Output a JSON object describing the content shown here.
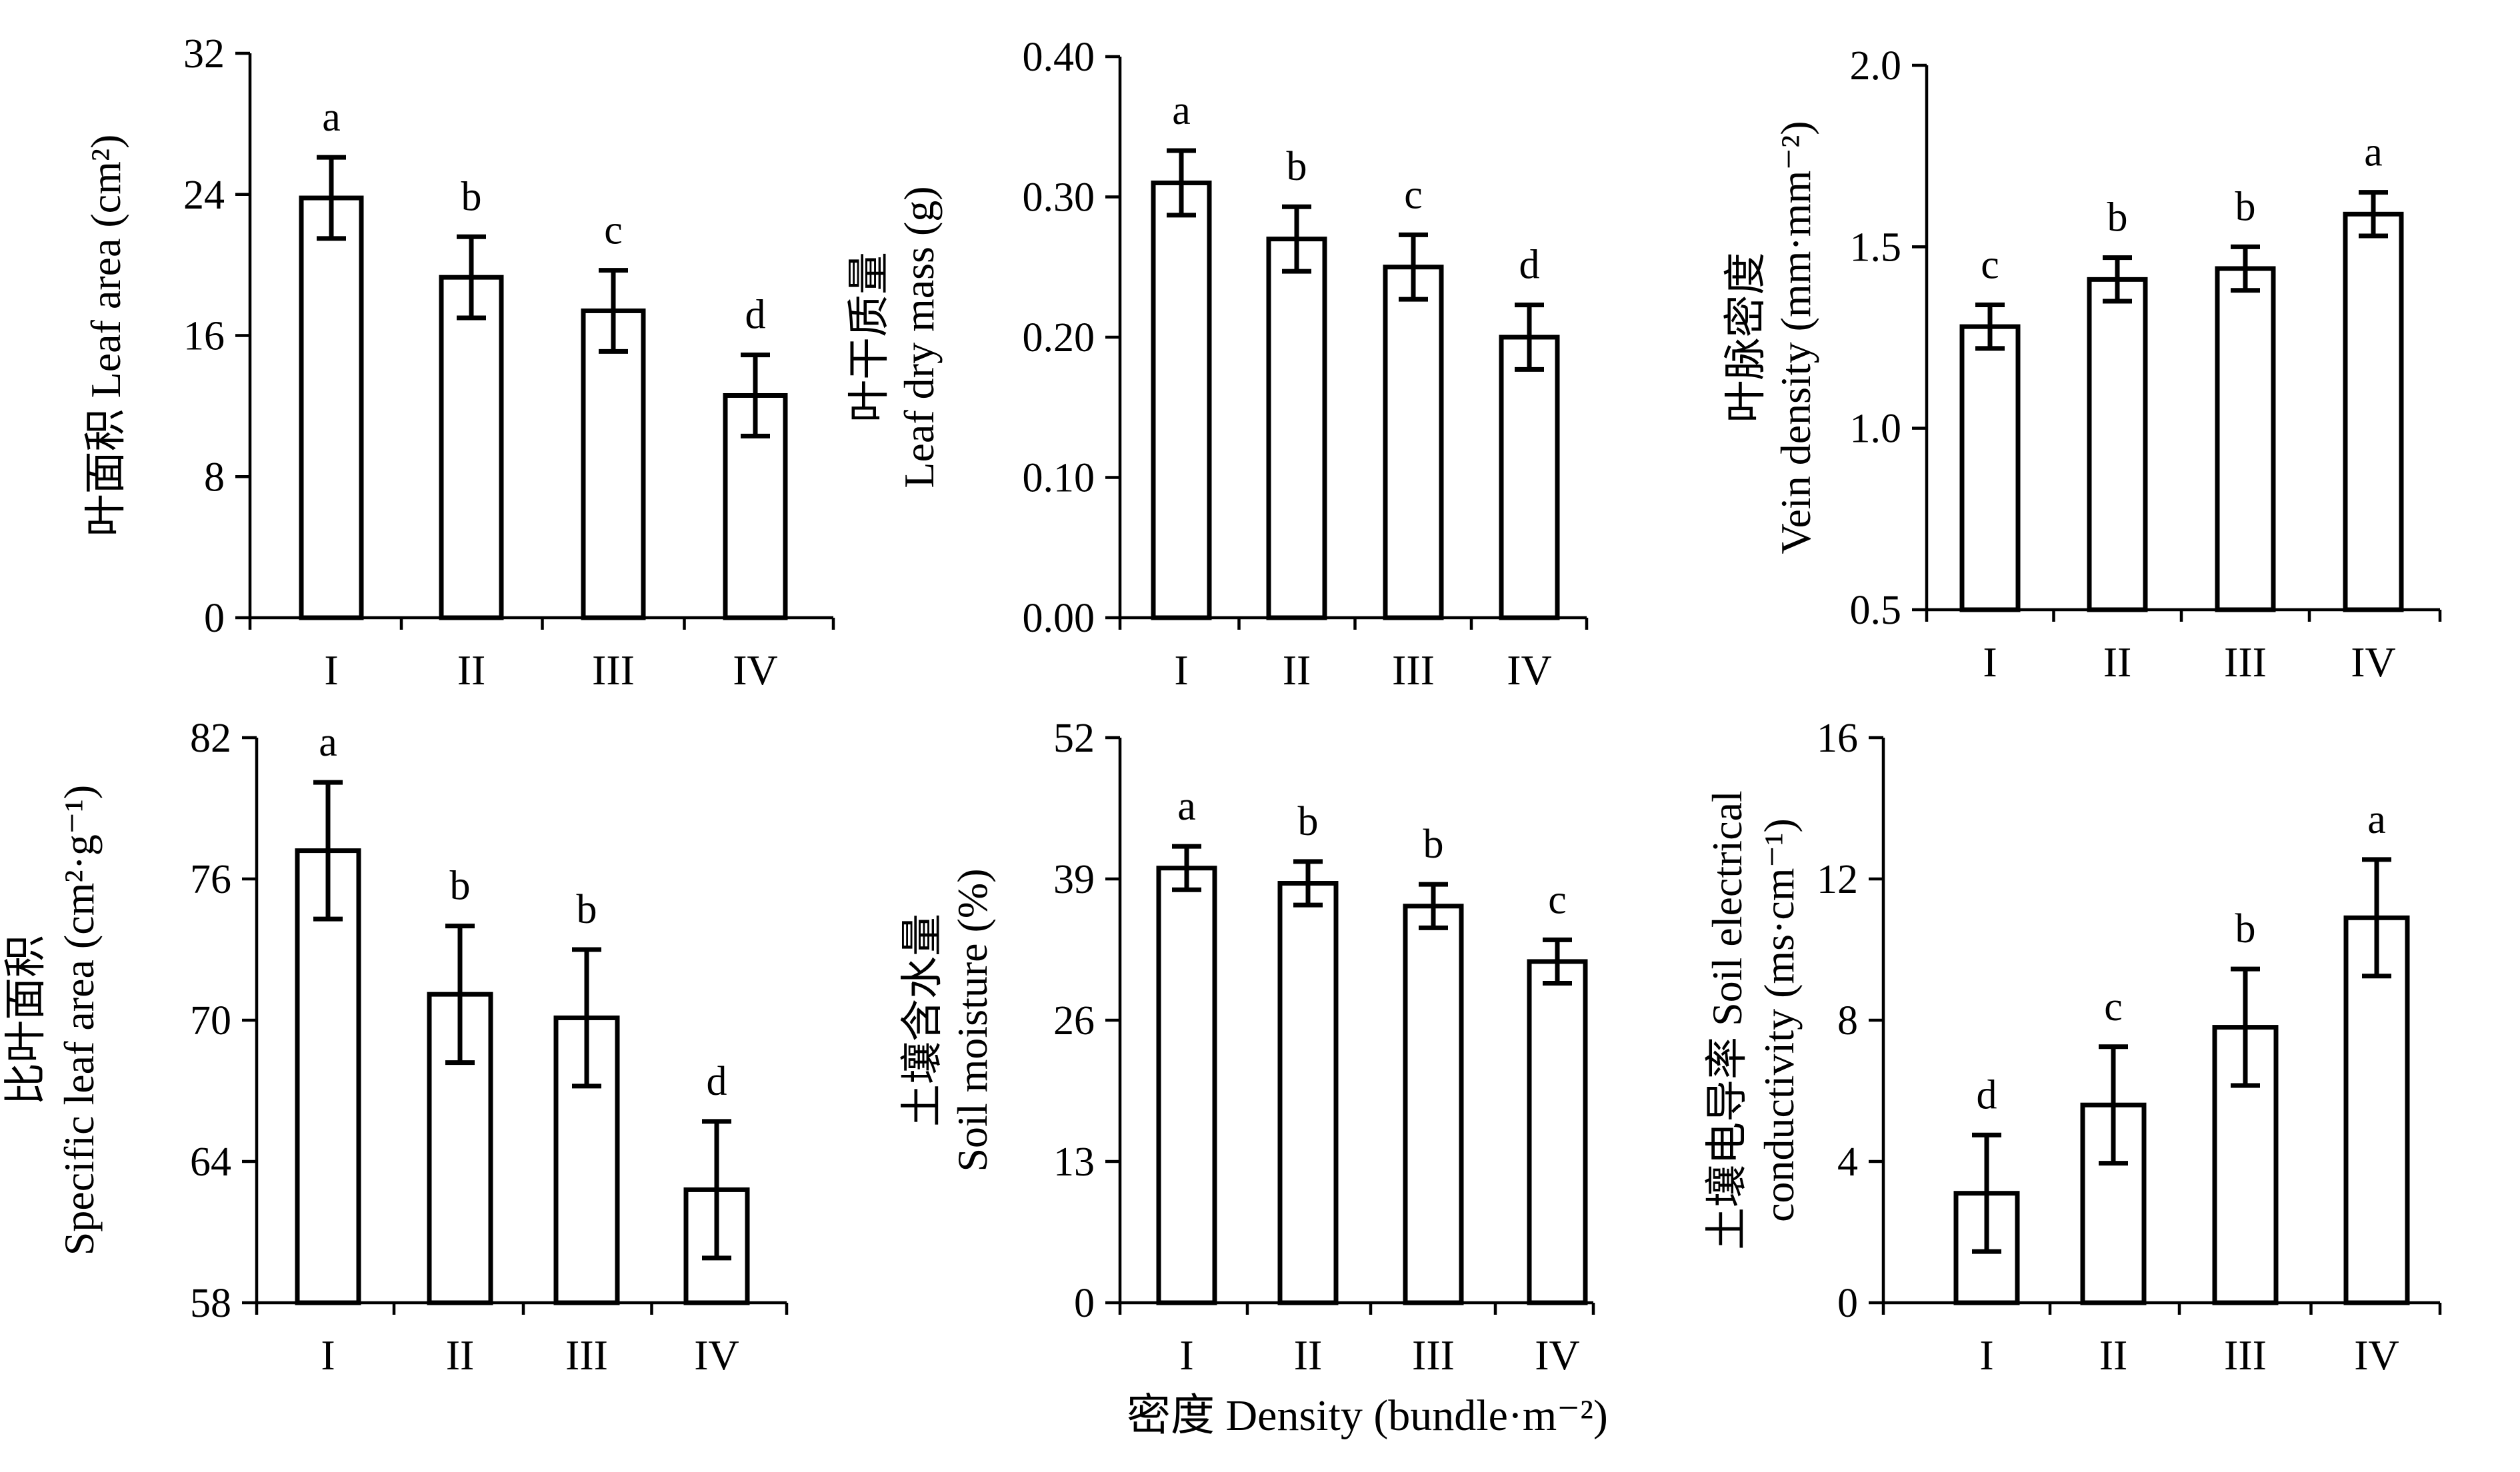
{
  "xlabel": "密度 Density (bundle·m⁻²)",
  "chart_data": [
    {
      "id": "leaf-area",
      "type": "bar",
      "ylabel_lines": [
        "叶面积  Leaf area (cm²)"
      ],
      "categories": [
        "I",
        "II",
        "III",
        "IV"
      ],
      "values": [
        23.8,
        19.3,
        17.4,
        12.6
      ],
      "errors": [
        2.3,
        2.3,
        2.3,
        2.3
      ],
      "letters": [
        "a",
        "b",
        "c",
        "d"
      ],
      "ylim": [
        0,
        32
      ],
      "yticks": [
        0,
        8,
        16,
        24,
        32
      ],
      "ytick_labels": [
        "0",
        "8",
        "16",
        "24",
        "32"
      ]
    },
    {
      "id": "leaf-dry-mass",
      "type": "bar",
      "ylabel_lines": [
        "叶干质量",
        "Leaf dry mass (g)"
      ],
      "categories": [
        "I",
        "II",
        "III",
        "IV"
      ],
      "values": [
        0.31,
        0.27,
        0.25,
        0.2
      ],
      "errors": [
        0.023,
        0.023,
        0.023,
        0.023
      ],
      "letters": [
        "a",
        "b",
        "c",
        "d"
      ],
      "ylim": [
        0,
        0.4
      ],
      "yticks": [
        0,
        0.1,
        0.2,
        0.3,
        0.4
      ],
      "ytick_labels": [
        "0.00",
        "0.10",
        "0.20",
        "0.30",
        "0.40"
      ]
    },
    {
      "id": "vein-density",
      "type": "bar",
      "ylabel_lines": [
        "叶脉密度",
        "Vein density (mm·mm⁻²)"
      ],
      "categories": [
        "I",
        "II",
        "III",
        "IV"
      ],
      "values": [
        1.28,
        1.41,
        1.44,
        1.59
      ],
      "errors": [
        0.06,
        0.06,
        0.06,
        0.06
      ],
      "letters": [
        "c",
        "b",
        "b",
        "a"
      ],
      "ylim": [
        0.5,
        2.0
      ],
      "yticks": [
        0.5,
        1.0,
        1.5,
        2.0
      ],
      "ytick_labels": [
        "0.5",
        "1.0",
        "1.5",
        "2.0"
      ]
    },
    {
      "id": "specific-leaf-area",
      "type": "bar",
      "ylabel_lines": [
        "比叶面积",
        "Specific leaf area (cm²·g⁻¹)"
      ],
      "categories": [
        "I",
        "II",
        "III",
        "IV"
      ],
      "values": [
        77.2,
        71.1,
        70.1,
        62.8
      ],
      "errors": [
        2.9,
        2.9,
        2.9,
        2.9
      ],
      "letters": [
        "a",
        "b",
        "b",
        "d"
      ],
      "ylim": [
        58,
        82
      ],
      "yticks": [
        58,
        64,
        70,
        76,
        82
      ],
      "ytick_labels": [
        "58",
        "64",
        "70",
        "76",
        "82"
      ]
    },
    {
      "id": "soil-moisture",
      "type": "bar",
      "ylabel_lines": [
        "土壤含水量",
        "Soil moisture (%)"
      ],
      "categories": [
        "I",
        "II",
        "III",
        "IV"
      ],
      "values": [
        40.0,
        38.6,
        36.5,
        31.4
      ],
      "errors": [
        2.0,
        2.0,
        2.0,
        2.0
      ],
      "letters": [
        "a",
        "b",
        "b",
        "c"
      ],
      "ylim": [
        0,
        52
      ],
      "yticks": [
        0,
        13,
        26,
        39,
        52
      ],
      "ytick_labels": [
        "0",
        "13",
        "26",
        "39",
        "52"
      ]
    },
    {
      "id": "soil-electrical-conductivity",
      "type": "bar",
      "ylabel_lines": [
        "土壤电导率 Soil electrical",
        "conductivity (ms·cm⁻¹)"
      ],
      "categories": [
        "I",
        "II",
        "III",
        "IV"
      ],
      "values": [
        3.1,
        5.6,
        7.8,
        10.9
      ],
      "errors": [
        1.65,
        1.65,
        1.65,
        1.65
      ],
      "letters": [
        "d",
        "c",
        "b",
        "a"
      ],
      "ylim": [
        0,
        16
      ],
      "yticks": [
        0,
        4,
        8,
        12,
        16
      ],
      "ytick_labels": [
        "0",
        "4",
        "8",
        "12",
        "16"
      ]
    }
  ]
}
